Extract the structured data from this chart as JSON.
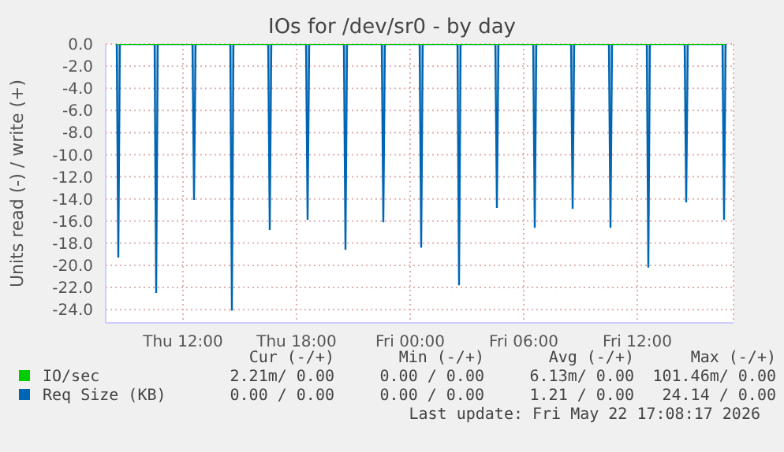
{
  "chart_data": {
    "type": "area",
    "title": "IOs for /dev/sr0 - by day",
    "ylabel": "Units read (-) / write (+)",
    "xlim": [
      "2026-05-21T07:55",
      "2026-05-22T17:05"
    ],
    "xticks": [
      {
        "value": "2026-05-21T12:00",
        "label": "Thu 12:00"
      },
      {
        "value": "2026-05-21T18:00",
        "label": "Thu 18:00"
      },
      {
        "value": "2026-05-22T00:00",
        "label": "Fri 00:00"
      },
      {
        "value": "2026-05-22T06:00",
        "label": "Fri 06:00"
      },
      {
        "value": "2026-05-22T12:00",
        "label": "Fri 12:00"
      }
    ],
    "ylim": [
      -25.2,
      0
    ],
    "yticks": [
      {
        "value": 0,
        "label": "0.0"
      },
      {
        "value": -2,
        "label": "-2.0"
      },
      {
        "value": -4,
        "label": "-4.0"
      },
      {
        "value": -6,
        "label": "-6.0"
      },
      {
        "value": -8,
        "label": "-8.0"
      },
      {
        "value": -10,
        "label": "-10.0"
      },
      {
        "value": -12,
        "label": "-12.0"
      },
      {
        "value": -14,
        "label": "-14.0"
      },
      {
        "value": -16,
        "label": "-16.0"
      },
      {
        "value": -18,
        "label": "-18.0"
      },
      {
        "value": -20,
        "label": "-20.0"
      },
      {
        "value": -22,
        "label": "-22.0"
      },
      {
        "value": -24,
        "label": "-24.0"
      }
    ],
    "grid": true,
    "legend": "bottom",
    "x": [
      "2026-05-21T08:30",
      "2026-05-21T08:35",
      "2026-05-21T08:40",
      "2026-05-21T10:30",
      "2026-05-21T10:35",
      "2026-05-21T10:40",
      "2026-05-21T12:30",
      "2026-05-21T12:35",
      "2026-05-21T12:40",
      "2026-05-21T14:30",
      "2026-05-21T14:35",
      "2026-05-21T14:40",
      "2026-05-21T16:30",
      "2026-05-21T16:35",
      "2026-05-21T16:40",
      "2026-05-21T18:30",
      "2026-05-21T18:35",
      "2026-05-21T18:40",
      "2026-05-21T20:30",
      "2026-05-21T20:35",
      "2026-05-21T20:40",
      "2026-05-21T22:30",
      "2026-05-21T22:35",
      "2026-05-21T22:40",
      "2026-05-22T00:30",
      "2026-05-22T00:35",
      "2026-05-22T00:40",
      "2026-05-22T02:30",
      "2026-05-22T02:35",
      "2026-05-22T02:40",
      "2026-05-22T04:30",
      "2026-05-22T04:35",
      "2026-05-22T04:40",
      "2026-05-22T06:30",
      "2026-05-22T06:35",
      "2026-05-22T06:40",
      "2026-05-22T08:30",
      "2026-05-22T08:35",
      "2026-05-22T08:40",
      "2026-05-22T10:30",
      "2026-05-22T10:35",
      "2026-05-22T10:40",
      "2026-05-22T12:30",
      "2026-05-22T12:35",
      "2026-05-22T12:40",
      "2026-05-22T14:30",
      "2026-05-22T14:35",
      "2026-05-22T14:40",
      "2026-05-22T16:30",
      "2026-05-22T16:35",
      "2026-05-22T16:40"
    ],
    "series": [
      {
        "name": "IO/sec",
        "type": "line",
        "color": "#00cc00",
        "values": [
          0,
          0,
          0,
          0,
          0,
          0,
          0,
          0,
          0,
          0,
          0,
          0,
          0,
          0,
          0,
          0,
          0,
          0,
          0,
          0,
          0,
          0,
          0,
          0,
          0,
          0,
          0,
          0,
          0,
          0,
          0,
          0,
          0,
          0,
          0,
          0,
          0,
          0,
          0,
          0,
          0,
          0,
          0,
          0,
          0,
          0,
          0,
          0,
          0,
          0,
          0
        ]
      },
      {
        "name": "Req Size (KB)",
        "color": "#0066b3",
        "values": [
          0,
          -19.3,
          0,
          0,
          -22.5,
          0,
          0,
          -14.1,
          0,
          0,
          -24.1,
          0,
          0,
          -16.8,
          0,
          0,
          -15.9,
          0,
          0,
          -18.6,
          0,
          0,
          -16.1,
          0,
          0,
          -18.4,
          0,
          0,
          -21.8,
          0,
          0,
          -14.8,
          0,
          0,
          -16.6,
          0,
          0,
          -14.9,
          0,
          0,
          -16.6,
          0,
          0,
          -20.2,
          0,
          0,
          -14.3,
          0,
          0,
          -15.9,
          0
        ]
      }
    ],
    "annotations": [
      "Cur (-/+)",
      "Min (-/+)",
      "Avg (-/+)",
      "Max (-/+)",
      "2.21m/ 0.00",
      "0.00 / 0.00",
      "6.13m/ 0.00",
      "101.46m/ 0.00",
      "0.00 / 0.00",
      "0.00 / 0.00",
      "1.21 / 0.00",
      "24.14 / 0.00",
      "Last update: Fri May 22 17:08:17 2026"
    ]
  }
}
